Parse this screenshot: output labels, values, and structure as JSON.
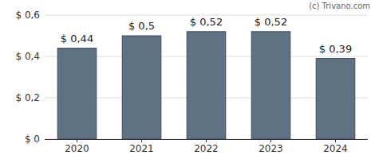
{
  "chart_data": {
    "type": "bar",
    "categories": [
      "2020",
      "2021",
      "2022",
      "2023",
      "2024"
    ],
    "values": [
      0.44,
      0.5,
      0.52,
      0.52,
      0.39
    ],
    "value_labels": [
      "$ 0,44",
      "$ 0,5",
      "$ 0,52",
      "$ 0,52",
      "$ 0,39"
    ],
    "data_labels": true,
    "color": "#5f7283",
    "ylim": [
      0,
      0.6
    ],
    "yticks": [
      {
        "value": 0,
        "label": "$ 0"
      },
      {
        "value": 0.2,
        "label": "$ 0,2"
      },
      {
        "value": 0.4,
        "label": "$ 0,4"
      },
      {
        "value": 0.6,
        "label": "$ 0,6"
      }
    ],
    "grid": true,
    "annotations": [
      "(c) Trivano.com"
    ]
  }
}
